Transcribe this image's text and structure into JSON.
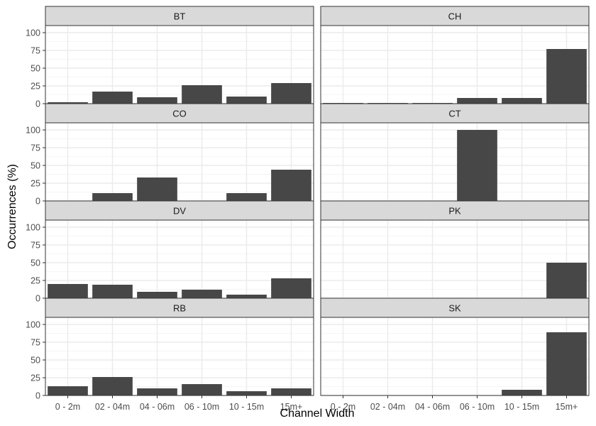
{
  "chart_data": {
    "type": "bar",
    "facet_layout": "2 columns x 4 rows",
    "xlabel": "Channel Width",
    "ylabel": "Occurrences (%)",
    "ylim": [
      0,
      110
    ],
    "yticks": [
      0,
      25,
      50,
      75,
      100
    ],
    "grid": true,
    "categories": [
      "0 - 2m",
      "02 - 04m",
      "04 - 06m",
      "06 - 10m",
      "10 - 15m",
      "15m+"
    ],
    "series": [
      {
        "name": "BT",
        "values": [
          2,
          17,
          9,
          26,
          10,
          29
        ]
      },
      {
        "name": "CH",
        "values": [
          1,
          1,
          1,
          8,
          8,
          77
        ]
      },
      {
        "name": "CO",
        "values": [
          0,
          11,
          33,
          0,
          11,
          44
        ]
      },
      {
        "name": "CT",
        "values": [
          0,
          0,
          0,
          100,
          0,
          0
        ]
      },
      {
        "name": "DV",
        "values": [
          20,
          19,
          9,
          12,
          5,
          28
        ]
      },
      {
        "name": "PK",
        "values": [
          0,
          0,
          0,
          0,
          0,
          50
        ]
      },
      {
        "name": "RB",
        "values": [
          13,
          26,
          10,
          16,
          6,
          10
        ]
      },
      {
        "name": "SK",
        "values": [
          0,
          0,
          0,
          0,
          8,
          89
        ]
      }
    ],
    "colors": {
      "bar": "#474747",
      "strip_fill": "#d9d9d9",
      "panel_border": "#333333",
      "grid_major": "#ebebeb",
      "grid_minor": "#f5f5f5"
    }
  }
}
